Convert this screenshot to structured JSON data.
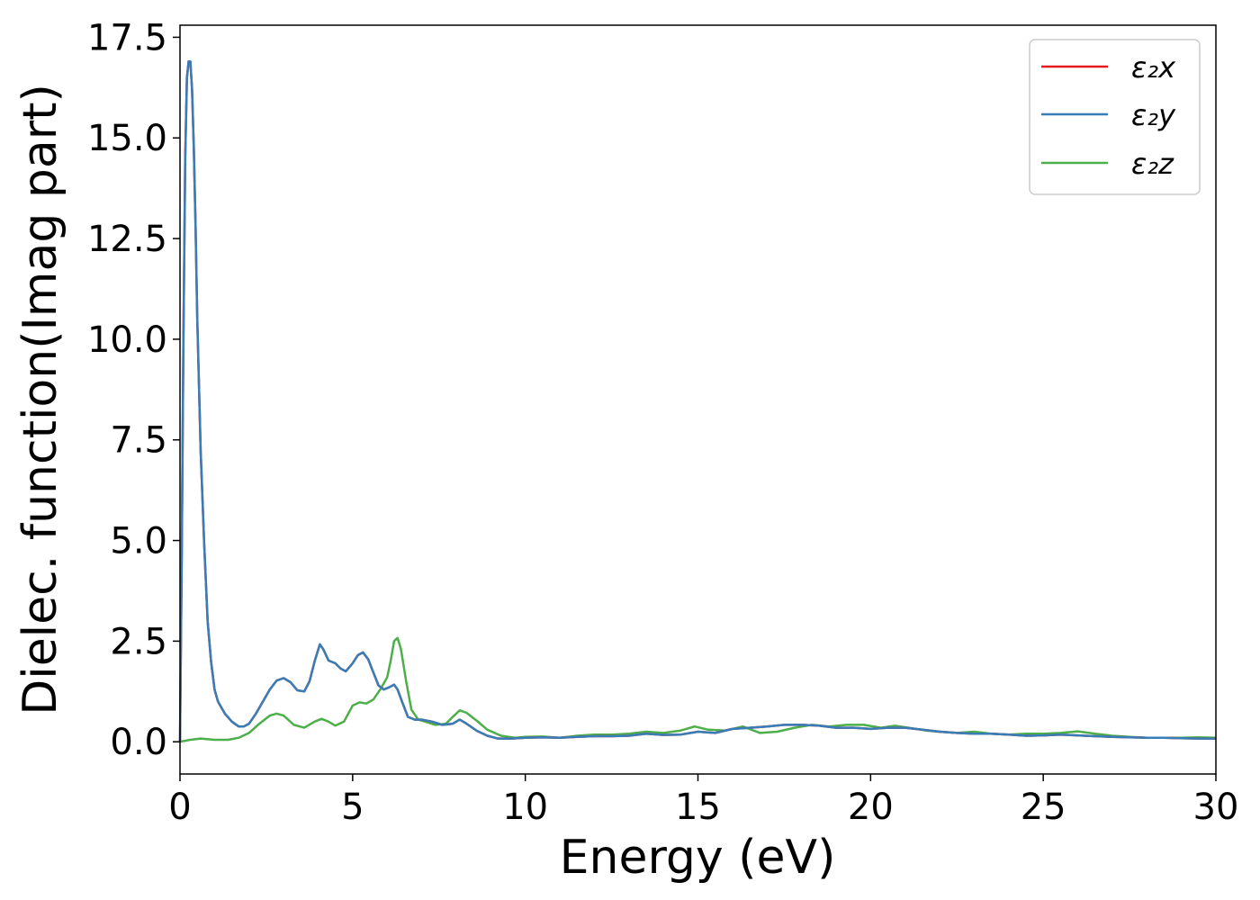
{
  "chart_data": {
    "type": "line",
    "xlabel": "Energy (eV)",
    "ylabel": "Dielec. function(Imag part)",
    "xlim": [
      0,
      30
    ],
    "ylim": [
      -0.8,
      17.8
    ],
    "xticks": [
      0,
      5,
      10,
      15,
      20,
      25,
      30
    ],
    "xtick_labels": [
      "0",
      "5",
      "10",
      "15",
      "20",
      "25",
      "30"
    ],
    "yticks": [
      0,
      2.5,
      5,
      7.5,
      10,
      12.5,
      15,
      17.5
    ],
    "ytick_labels": [
      "0.0",
      "2.5",
      "5.0",
      "7.5",
      "10.0",
      "12.5",
      "15.0",
      "17.5"
    ],
    "grid": false,
    "legend_position": "top-right",
    "series": [
      {
        "name": "ε₂x",
        "color": "#e41a1c",
        "x": [
          0,
          0.05,
          0.1,
          0.15,
          0.2,
          0.25,
          0.3,
          0.35,
          0.4,
          0.45,
          0.5,
          0.6,
          0.7,
          0.8,
          0.9,
          1.0,
          1.1,
          1.2,
          1.3,
          1.5,
          1.7,
          1.85,
          2.0,
          2.2,
          2.4,
          2.6,
          2.8,
          3.0,
          3.2,
          3.4,
          3.6,
          3.75,
          3.9,
          4.05,
          4.15,
          4.3,
          4.5,
          4.65,
          4.8,
          5.0,
          5.15,
          5.3,
          5.45,
          5.6,
          5.75,
          5.9,
          6.05,
          6.2,
          6.3,
          6.45,
          6.6,
          6.8,
          7.0,
          7.3,
          7.6,
          7.9,
          8.1,
          8.3,
          8.6,
          8.9,
          9.2,
          9.6,
          10.0,
          10.5,
          11.0,
          11.5,
          12.0,
          12.5,
          13.0,
          13.5,
          14.0,
          14.5,
          15.0,
          15.5,
          16.0,
          16.5,
          17.0,
          17.5,
          18.0,
          18.5,
          19.0,
          19.5,
          20.0,
          20.5,
          21.0,
          21.5,
          22.0,
          22.5,
          23.0,
          23.5,
          24.0,
          24.5,
          25.0,
          25.5,
          26.0,
          26.5,
          27.0,
          27.5,
          28.0,
          28.5,
          29.0,
          29.5,
          30.0
        ],
        "y": [
          0,
          4.5,
          10.0,
          14.5,
          16.5,
          16.9,
          16.9,
          16.2,
          14.8,
          12.8,
          10.5,
          7.2,
          4.9,
          3.0,
          2.0,
          1.3,
          1.0,
          0.85,
          0.7,
          0.5,
          0.38,
          0.38,
          0.45,
          0.7,
          1.0,
          1.3,
          1.52,
          1.58,
          1.48,
          1.28,
          1.25,
          1.5,
          2.0,
          2.42,
          2.3,
          2.02,
          1.95,
          1.82,
          1.75,
          1.95,
          2.15,
          2.22,
          2.05,
          1.72,
          1.4,
          1.3,
          1.35,
          1.42,
          1.3,
          0.95,
          0.62,
          0.55,
          0.55,
          0.5,
          0.42,
          0.45,
          0.55,
          0.45,
          0.27,
          0.15,
          0.08,
          0.08,
          0.1,
          0.11,
          0.1,
          0.12,
          0.14,
          0.14,
          0.15,
          0.2,
          0.17,
          0.18,
          0.25,
          0.22,
          0.32,
          0.35,
          0.38,
          0.42,
          0.42,
          0.4,
          0.35,
          0.35,
          0.32,
          0.35,
          0.35,
          0.3,
          0.25,
          0.22,
          0.2,
          0.2,
          0.18,
          0.15,
          0.16,
          0.18,
          0.16,
          0.14,
          0.12,
          0.11,
          0.1,
          0.1,
          0.09,
          0.08,
          0.08
        ]
      },
      {
        "name": "ε₂y",
        "color": "#377eb8",
        "x": [
          0,
          0.05,
          0.1,
          0.15,
          0.2,
          0.25,
          0.3,
          0.35,
          0.4,
          0.45,
          0.5,
          0.6,
          0.7,
          0.8,
          0.9,
          1.0,
          1.1,
          1.2,
          1.3,
          1.5,
          1.7,
          1.85,
          2.0,
          2.2,
          2.4,
          2.6,
          2.8,
          3.0,
          3.2,
          3.4,
          3.6,
          3.75,
          3.9,
          4.05,
          4.15,
          4.3,
          4.5,
          4.65,
          4.8,
          5.0,
          5.15,
          5.3,
          5.45,
          5.6,
          5.75,
          5.9,
          6.05,
          6.2,
          6.3,
          6.45,
          6.6,
          6.8,
          7.0,
          7.3,
          7.6,
          7.9,
          8.1,
          8.3,
          8.6,
          8.9,
          9.2,
          9.6,
          10.0,
          10.5,
          11.0,
          11.5,
          12.0,
          12.5,
          13.0,
          13.5,
          14.0,
          14.5,
          15.0,
          15.5,
          16.0,
          16.5,
          17.0,
          17.5,
          18.0,
          18.5,
          19.0,
          19.5,
          20.0,
          20.5,
          21.0,
          21.5,
          22.0,
          22.5,
          23.0,
          23.5,
          24.0,
          24.5,
          25.0,
          25.5,
          26.0,
          26.5,
          27.0,
          27.5,
          28.0,
          28.5,
          29.0,
          29.5,
          30.0
        ],
        "y": [
          0,
          4.5,
          10.0,
          14.5,
          16.5,
          16.9,
          16.9,
          16.2,
          14.8,
          12.8,
          10.5,
          7.2,
          4.9,
          3.0,
          2.0,
          1.3,
          1.0,
          0.85,
          0.7,
          0.5,
          0.38,
          0.38,
          0.45,
          0.7,
          1.0,
          1.3,
          1.52,
          1.58,
          1.48,
          1.28,
          1.25,
          1.5,
          2.0,
          2.42,
          2.3,
          2.02,
          1.95,
          1.82,
          1.75,
          1.95,
          2.15,
          2.22,
          2.05,
          1.72,
          1.4,
          1.3,
          1.35,
          1.42,
          1.3,
          0.95,
          0.62,
          0.55,
          0.55,
          0.5,
          0.42,
          0.45,
          0.55,
          0.45,
          0.27,
          0.15,
          0.08,
          0.08,
          0.1,
          0.11,
          0.1,
          0.12,
          0.14,
          0.14,
          0.15,
          0.2,
          0.17,
          0.18,
          0.25,
          0.22,
          0.32,
          0.35,
          0.38,
          0.42,
          0.42,
          0.4,
          0.35,
          0.35,
          0.32,
          0.35,
          0.35,
          0.3,
          0.25,
          0.22,
          0.2,
          0.2,
          0.18,
          0.15,
          0.16,
          0.18,
          0.16,
          0.14,
          0.12,
          0.11,
          0.1,
          0.1,
          0.09,
          0.08,
          0.08
        ]
      },
      {
        "name": "ε₂z",
        "color": "#4daf4a",
        "x": [
          0,
          0.3,
          0.6,
          1.0,
          1.4,
          1.7,
          2.0,
          2.3,
          2.6,
          2.8,
          3.0,
          3.3,
          3.6,
          3.9,
          4.1,
          4.3,
          4.5,
          4.75,
          5.0,
          5.2,
          5.4,
          5.6,
          5.8,
          6.0,
          6.1,
          6.2,
          6.3,
          6.4,
          6.55,
          6.7,
          6.9,
          7.1,
          7.4,
          7.7,
          7.9,
          8.1,
          8.3,
          8.6,
          8.9,
          9.3,
          9.7,
          10.0,
          10.5,
          11.0,
          11.5,
          12.0,
          12.5,
          13.0,
          13.5,
          14.0,
          14.5,
          14.9,
          15.3,
          15.8,
          16.3,
          16.8,
          17.3,
          17.8,
          18.3,
          18.8,
          19.3,
          19.8,
          20.3,
          20.7,
          21.1,
          21.6,
          22.0,
          22.5,
          23.0,
          23.5,
          24.0,
          24.5,
          25.0,
          25.5,
          26.0,
          26.5,
          27.0,
          27.5,
          28.0,
          28.5,
          29.0,
          29.5,
          30.0
        ],
        "y": [
          0,
          0.05,
          0.08,
          0.05,
          0.05,
          0.1,
          0.22,
          0.45,
          0.65,
          0.7,
          0.65,
          0.42,
          0.35,
          0.5,
          0.57,
          0.5,
          0.4,
          0.5,
          0.9,
          0.98,
          0.95,
          1.05,
          1.3,
          1.6,
          2.0,
          2.5,
          2.58,
          2.3,
          1.5,
          0.8,
          0.55,
          0.5,
          0.42,
          0.45,
          0.62,
          0.78,
          0.72,
          0.52,
          0.3,
          0.15,
          0.1,
          0.12,
          0.13,
          0.1,
          0.15,
          0.18,
          0.18,
          0.2,
          0.25,
          0.22,
          0.28,
          0.38,
          0.3,
          0.28,
          0.38,
          0.22,
          0.25,
          0.35,
          0.42,
          0.38,
          0.42,
          0.42,
          0.35,
          0.4,
          0.35,
          0.28,
          0.25,
          0.22,
          0.25,
          0.2,
          0.18,
          0.2,
          0.2,
          0.22,
          0.26,
          0.2,
          0.15,
          0.12,
          0.1,
          0.1,
          0.1,
          0.11,
          0.1
        ]
      }
    ]
  }
}
